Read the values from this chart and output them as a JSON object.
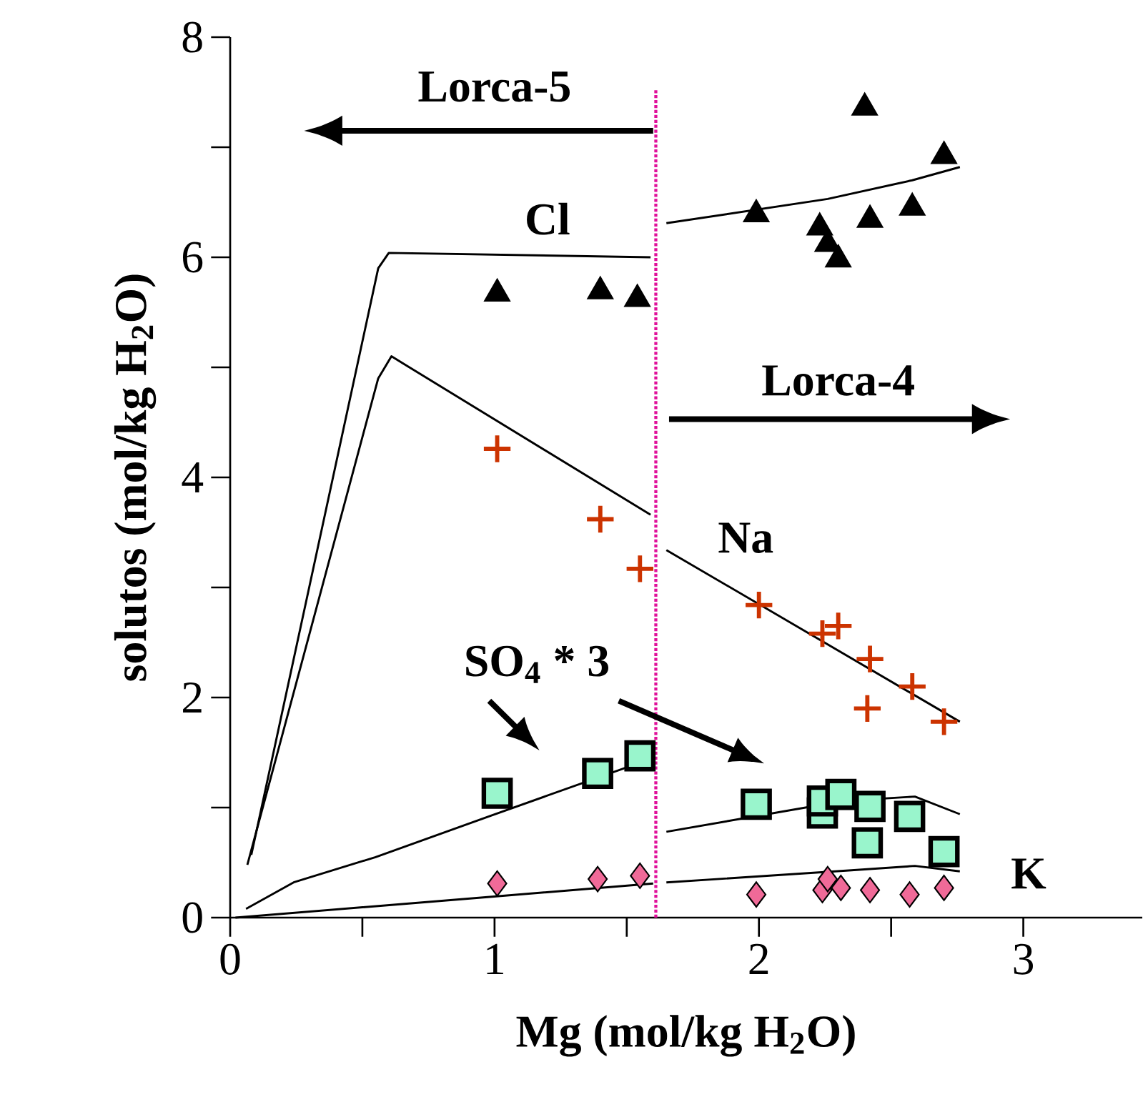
{
  "chart_data": {
    "type": "scatter",
    "xlabel": "Mg (mol/kg H$_{2}$O)",
    "ylabel": "solutos (mol/kg H$_{2}$O)",
    "xlim": [
      0,
      3.45
    ],
    "ylim": [
      0,
      8
    ],
    "xticks": [
      0,
      {
        "value": 0.5,
        "label": null
      },
      1,
      {
        "value": 1.5,
        "label": null
      },
      2,
      {
        "value": 2.5,
        "label": null
      },
      3
    ],
    "yticks": [
      0,
      {
        "value": 1,
        "label": null
      },
      2,
      {
        "value": 3,
        "label": null
      },
      4,
      {
        "value": 5,
        "label": null
      },
      6,
      {
        "value": 7,
        "label": null
      },
      8
    ],
    "annotations": [
      "Lorca-5",
      "Lorca-4"
    ],
    "ref_lines": [
      {
        "axis": "x",
        "value": 1.61,
        "color": "#e0109a",
        "line_style": "dotted"
      }
    ],
    "series": [
      {
        "name": "Cl",
        "marker": "triangle",
        "color": "#000000",
        "x": [
          1.01,
          1.4,
          1.54,
          1.99,
          2.23,
          2.26,
          2.3,
          2.4,
          2.42,
          2.58,
          2.7
        ],
        "values": [
          5.67,
          5.69,
          5.62,
          6.39,
          6.27,
          6.12,
          5.98,
          7.36,
          6.34,
          6.45,
          6.92
        ]
      },
      {
        "name": "Na",
        "marker": "cross",
        "color": "#cc3300",
        "x": [
          1.01,
          1.4,
          1.55,
          2.0,
          2.24,
          2.3,
          2.42,
          2.41,
          2.58,
          2.7
        ],
        "values": [
          4.26,
          3.62,
          3.17,
          2.84,
          2.58,
          2.65,
          2.35,
          1.9,
          2.1,
          1.78
        ]
      },
      {
        "name": "SO$_{4}$ * 3",
        "marker": "square",
        "color": "#99f5cc",
        "x": [
          1.01,
          1.39,
          1.55,
          1.99,
          2.24,
          2.24,
          2.31,
          2.42,
          2.41,
          2.57,
          2.7
        ],
        "values": [
          1.13,
          1.31,
          1.47,
          1.03,
          0.95,
          1.06,
          1.12,
          1.01,
          0.68,
          0.92,
          0.6
        ]
      },
      {
        "name": "K",
        "marker": "diamond",
        "color": "#f06a98",
        "x": [
          1.01,
          1.39,
          1.55,
          1.99,
          2.24,
          2.26,
          2.31,
          2.42,
          2.57,
          2.7
        ],
        "values": [
          0.31,
          0.35,
          0.38,
          0.21,
          0.25,
          0.35,
          0.27,
          0.25,
          0.21,
          0.27
        ]
      },
      {
        "type": "line",
        "color": "#000000",
        "x": [
          0.08,
          0.56,
          0.6,
          1.59
        ],
        "values": [
          0.57,
          5.9,
          6.04,
          6.0
        ]
      },
      {
        "type": "line",
        "color": "#000000",
        "x": [
          1.65,
          2.26,
          2.58,
          2.76
        ],
        "values": [
          6.31,
          6.53,
          6.7,
          6.82
        ]
      },
      {
        "type": "line",
        "color": "#000000",
        "x": [
          0.065,
          0.56,
          0.61,
          1.59
        ],
        "values": [
          0.48,
          4.9,
          5.1,
          3.66
        ]
      },
      {
        "type": "line",
        "color": "#000000",
        "x": [
          1.65,
          2.76
        ],
        "values": [
          3.34,
          1.78
        ]
      },
      {
        "type": "line",
        "color": "#000000",
        "x": [
          0.06,
          0.24,
          0.55,
          0.99,
          1.6
        ],
        "values": [
          0.08,
          0.32,
          0.55,
          0.93,
          1.45
        ]
      },
      {
        "type": "line",
        "color": "#000000",
        "x": [
          1.65,
          2.32,
          2.59,
          2.76
        ],
        "values": [
          0.78,
          1.06,
          1.1,
          0.94
        ]
      },
      {
        "type": "line",
        "color": "#000000",
        "x": [
          0.02,
          0.99,
          1.6
        ],
        "values": [
          0.0,
          0.19,
          0.31
        ]
      },
      {
        "type": "line",
        "color": "#000000",
        "x": [
          1.65,
          2.35,
          2.59,
          2.76
        ],
        "values": [
          0.32,
          0.43,
          0.47,
          0.42
        ]
      }
    ]
  }
}
